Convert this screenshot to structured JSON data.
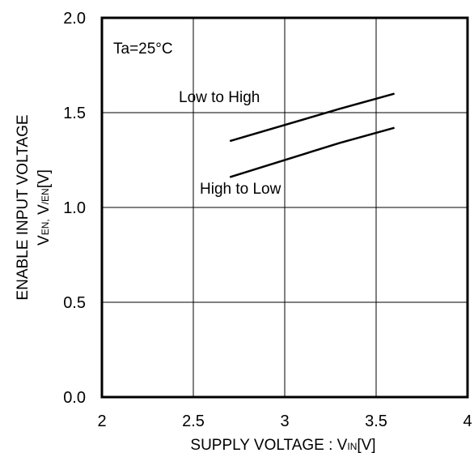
{
  "chart_data": {
    "type": "line",
    "xlim": [
      2,
      4
    ],
    "ylim": [
      0.0,
      2.0
    ],
    "x_ticks": [
      "2",
      "2.5",
      "3",
      "3.5",
      "4"
    ],
    "y_ticks": [
      "0.0",
      "0.5",
      "1.0",
      "1.5",
      "2.0"
    ],
    "grid": true,
    "xlabel": {
      "main": "SUPPLY VOLTAGE : V",
      "sub": "IN",
      "unit": "[V]"
    },
    "ylabel": {
      "line1": "ENABLE INPUT VOLTAGE",
      "prefix": "V",
      "sub1": "EN,",
      "mid": " V",
      "sub2": "/EN",
      "unit": "[V]"
    },
    "condition": "Ta=25°C",
    "series": [
      {
        "name": "Low to High",
        "x": [
          2.7,
          3.3,
          3.6
        ],
        "y": [
          1.35,
          1.52,
          1.6
        ]
      },
      {
        "name": "High to Low",
        "x": [
          2.7,
          3.3,
          3.6
        ],
        "y": [
          1.16,
          1.34,
          1.42
        ]
      }
    ]
  }
}
